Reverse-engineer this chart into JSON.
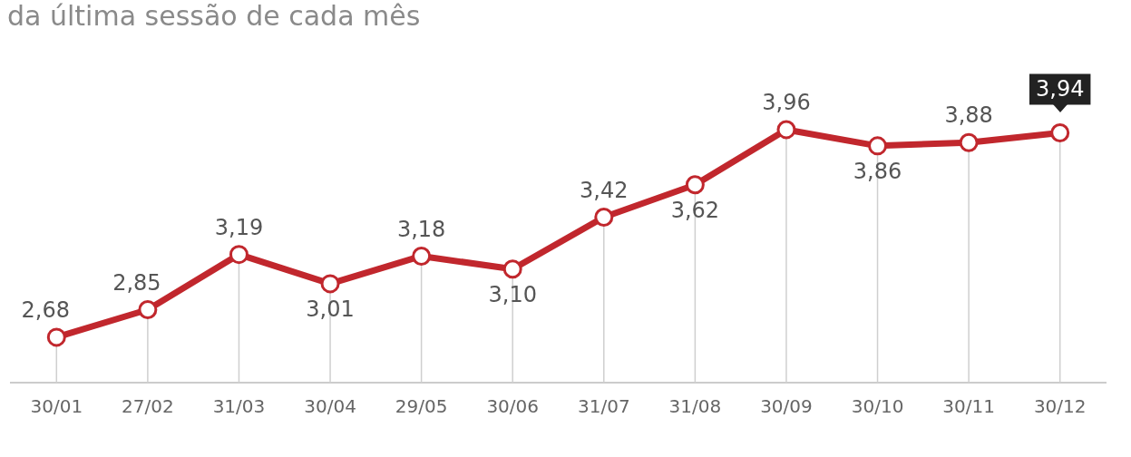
{
  "chart_data": {
    "type": "line",
    "title": "da última sessão de cada mês",
    "categories": [
      "30/01",
      "27/02",
      "31/03",
      "30/04",
      "29/05",
      "30/06",
      "31/07",
      "31/08",
      "30/09",
      "30/10",
      "30/11",
      "30/12"
    ],
    "series": [
      {
        "color": "#c1272d",
        "values": [
          2.68,
          2.85,
          3.19,
          3.01,
          3.18,
          3.1,
          3.42,
          3.62,
          3.96,
          3.86,
          3.88,
          3.94
        ],
        "value_labels": [
          "2,68",
          "2,85",
          "3,19",
          "3,01",
          "3,18",
          "3,10",
          "3,42",
          "3,62",
          "3,96",
          "3,86",
          "3,88",
          "3,94"
        ]
      }
    ],
    "grid": "x",
    "legend": false,
    "marker": "circle",
    "line_style": "solid"
  }
}
